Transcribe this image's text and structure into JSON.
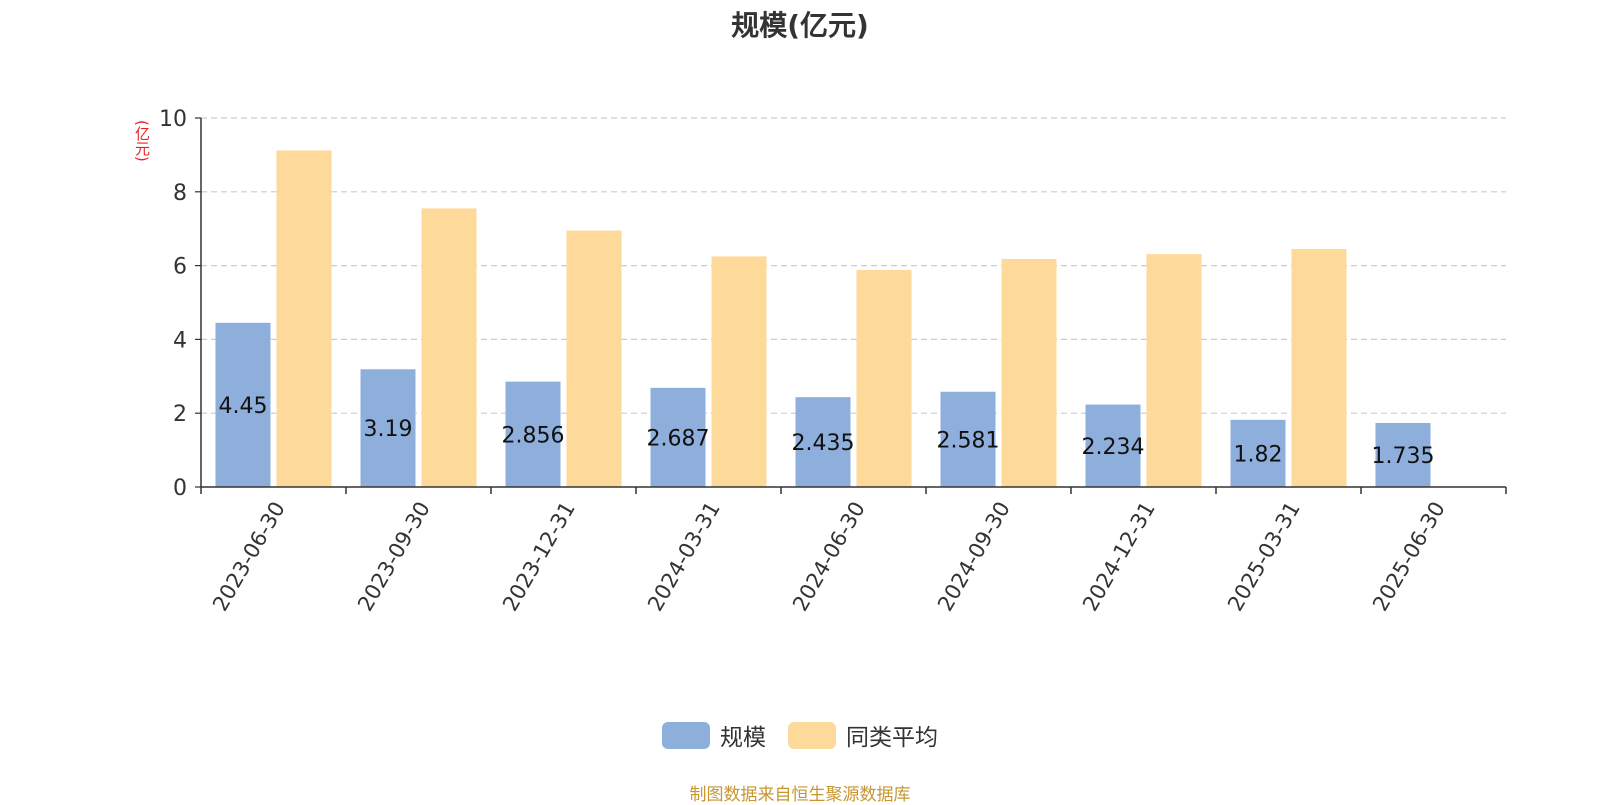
{
  "chart_data": {
    "type": "bar",
    "title": "规模(亿元)",
    "ylabel": "(亿元)",
    "ylim": [
      0,
      10
    ],
    "yticks": [
      "0",
      "2",
      "4",
      "6",
      "8",
      "10"
    ],
    "grid": true,
    "legend_position": "bottom",
    "categories": [
      "2023-06-30",
      "2023-09-30",
      "2023-12-31",
      "2024-03-31",
      "2024-06-30",
      "2024-09-30",
      "2024-12-31",
      "2025-03-31",
      "2025-06-30"
    ],
    "series": [
      {
        "name": "规模",
        "color": "#8eaedb",
        "values": [
          4.45,
          3.19,
          2.856,
          2.687,
          2.435,
          2.581,
          2.234,
          1.82,
          1.735
        ],
        "labels": [
          "4.45",
          "3.19",
          "2.856",
          "2.687",
          "2.435",
          "2.581",
          "2.234",
          "1.82",
          "1.735"
        ]
      },
      {
        "name": "同类平均",
        "color": "#fdd99a",
        "values": [
          9.12,
          7.55,
          6.95,
          6.25,
          5.88,
          6.18,
          6.31,
          6.45,
          null
        ]
      }
    ]
  },
  "source_note": "制图数据来自恒生聚源数据库"
}
